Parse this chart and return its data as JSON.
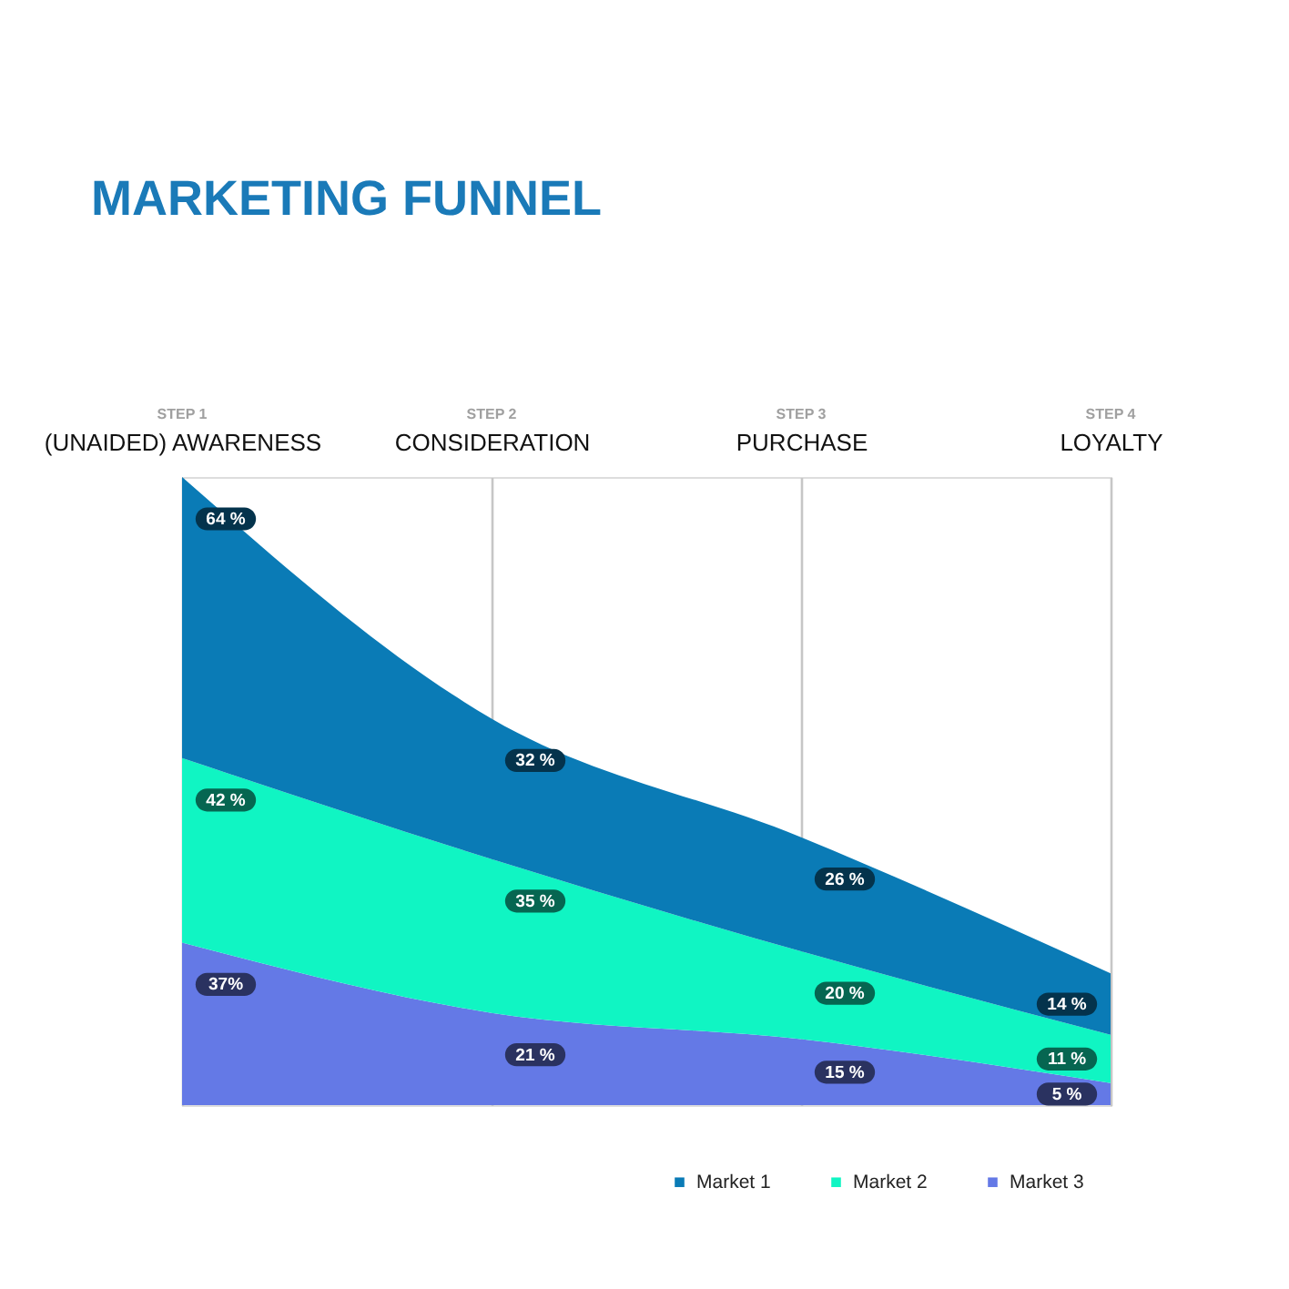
{
  "chart_data": {
    "type": "area",
    "title": "MARKETING FUNNEL",
    "categories": [
      "(UNAIDED) AWARENESS",
      "CONSIDERATION",
      "PURCHASE",
      "LOYALTY"
    ],
    "stacked": true,
    "series": [
      {
        "name": "Market 3",
        "color": "#6479e6",
        "values": [
          37,
          21,
          15,
          5
        ],
        "value_labels": [
          "37%",
          "21 %",
          "15 %",
          "5 %"
        ]
      },
      {
        "name": "Market 2",
        "color": "#10f5c3",
        "values": [
          42,
          35,
          20,
          11
        ],
        "value_labels": [
          "42 %",
          "35 %",
          "20 %",
          "11 %"
        ]
      },
      {
        "name": "Market 1",
        "color": "#0a7bb6",
        "values": [
          64,
          32,
          26,
          14
        ],
        "value_labels": [
          "64 %",
          "32 %",
          "26 %",
          "14 %"
        ]
      }
    ],
    "annotations": [
      "STEP 1",
      "STEP 2",
      "STEP 3",
      "STEP 4"
    ],
    "grid": "x",
    "legend": "bottom",
    "tick_labels": "x"
  }
}
